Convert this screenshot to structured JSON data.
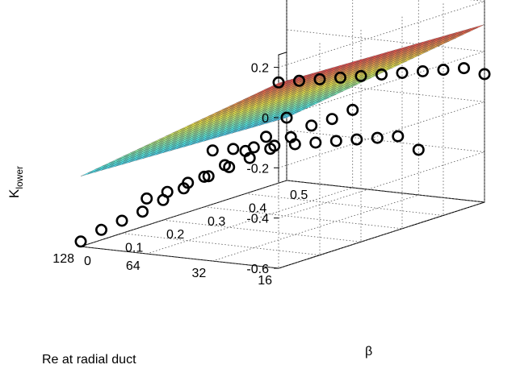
{
  "chart_data": {
    "type": "surface",
    "zlabel": "K",
    "zlabel_subscript": "lower",
    "xlabel": "β",
    "ylabel": "Re at radial duct",
    "x_ticks": [
      "0",
      "0.1",
      "0.2",
      "0.3",
      "0.4",
      "0.5"
    ],
    "y_ticks": [
      "16",
      "32",
      "64",
      "128"
    ],
    "z_ticks": [
      "-0.6",
      "-0.4",
      "-0.2",
      "0",
      "0.2"
    ],
    "xlim": [
      0,
      0.5
    ],
    "ylim": [
      16,
      128
    ],
    "zlim": [
      -0.6,
      0.25
    ],
    "grid": true,
    "colormap": "jet",
    "marker": "open circle",
    "surface": "K = -0.32 - 0.22*ln(Re/128) - 0.06*β (approx.)",
    "series": [
      {
        "Re": 16,
        "points": [
          [
            0.0,
            0.14
          ],
          [
            0.05,
            0.12
          ],
          [
            0.1,
            0.1
          ],
          [
            0.15,
            0.08
          ],
          [
            0.2,
            0.06
          ],
          [
            0.25,
            0.04
          ],
          [
            0.3,
            0.02
          ],
          [
            0.35,
            0.0
          ],
          [
            0.4,
            -0.02
          ],
          [
            0.45,
            -0.04
          ],
          [
            0.5,
            -0.09
          ]
        ]
      },
      {
        "Re": 32,
        "points": [
          [
            0.0,
            -0.16
          ],
          [
            0.05,
            -0.18
          ],
          [
            0.1,
            -0.2
          ],
          [
            0.15,
            -0.22
          ],
          [
            0.2,
            -0.24
          ],
          [
            0.25,
            -0.26
          ],
          [
            0.3,
            -0.28
          ],
          [
            0.35,
            -0.3
          ],
          [
            0.4,
            -0.32
          ],
          [
            0.45,
            -0.34
          ],
          [
            0.5,
            -0.42
          ]
        ]
      },
      {
        "Re": 64,
        "points": [
          [
            0.0,
            -0.38
          ],
          [
            0.05,
            -0.38
          ],
          [
            0.1,
            -0.37
          ],
          [
            0.15,
            -0.37
          ],
          [
            0.2,
            -0.36
          ],
          [
            0.25,
            -0.35
          ],
          [
            0.3,
            -0.34
          ],
          [
            0.35,
            -0.32
          ],
          [
            0.4,
            -0.3
          ],
          [
            0.45,
            -0.3
          ],
          [
            0.5,
            -0.29
          ]
        ]
      },
      {
        "Re": 128,
        "points": [
          [
            0.0,
            -0.58
          ],
          [
            0.05,
            -0.56
          ],
          [
            0.1,
            -0.55
          ],
          [
            0.15,
            -0.54
          ],
          [
            0.2,
            -0.52
          ],
          [
            0.25,
            -0.5
          ],
          [
            0.3,
            -0.48
          ],
          [
            0.35,
            -0.46
          ],
          [
            0.4,
            -0.43
          ],
          [
            0.45,
            -0.4
          ],
          [
            0.5,
            -0.35
          ]
        ]
      }
    ]
  }
}
